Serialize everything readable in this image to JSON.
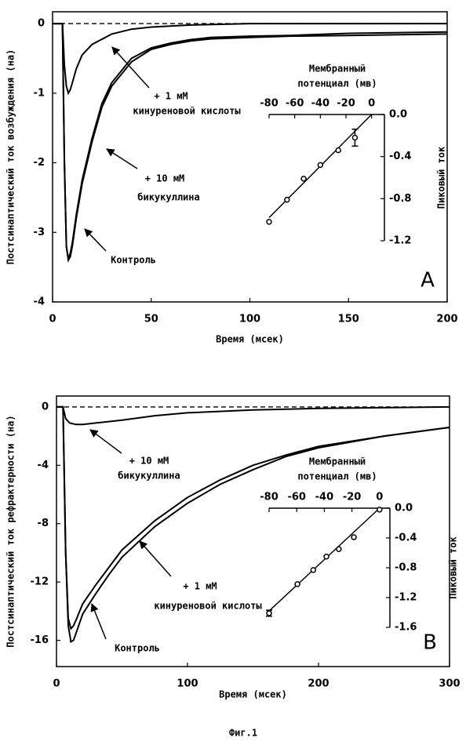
{
  "caption": "Фиг.1",
  "chart_data": [
    {
      "type": "line",
      "panel_label": "A",
      "xlabel": "Время (мсек)",
      "ylabel": "Постсинаптический ток возбуждения (на)",
      "xlim": [
        0,
        200
      ],
      "xticks": [
        0,
        50,
        100,
        150,
        200
      ],
      "ylim": [
        -4,
        0.17
      ],
      "yticks": [
        0,
        -1,
        -2,
        -3,
        -4
      ],
      "baseline": 0,
      "series": [
        {
          "color": "#000000",
          "x": [
            0,
            5,
            6,
            7,
            8,
            9,
            10,
            12,
            15,
            20,
            25,
            30,
            40,
            50,
            60,
            70,
            80,
            100,
            120,
            150,
            200
          ],
          "values": [
            0,
            0,
            -2,
            -3.2,
            -3.4,
            -3.35,
            -3.2,
            -2.8,
            -2.3,
            -1.7,
            -1.2,
            -0.9,
            -0.55,
            -0.37,
            -0.3,
            -0.25,
            -0.22,
            -0.2,
            -0.18,
            -0.17,
            -0.15
          ]
        },
        {
          "color": "#000000",
          "x": [
            0,
            5,
            6,
            7,
            8,
            9,
            10,
            12,
            15,
            20,
            25,
            30,
            40,
            50,
            60,
            70,
            80,
            100,
            120,
            150,
            200
          ],
          "values": [
            0,
            0,
            -2,
            -3.2,
            -3.38,
            -3.3,
            -3.15,
            -2.75,
            -2.25,
            -1.65,
            -1.15,
            -0.85,
            -0.5,
            -0.35,
            -0.28,
            -0.23,
            -0.2,
            -0.18,
            -0.17,
            -0.14,
            -0.12
          ]
        },
        {
          "color": "#000000",
          "x": [
            0,
            5,
            6,
            7,
            8,
            9,
            10,
            12,
            15,
            20,
            30,
            40,
            50,
            70,
            100,
            150,
            200
          ],
          "values": [
            0,
            0,
            -0.6,
            -0.9,
            -1.0,
            -0.95,
            -0.85,
            -0.65,
            -0.45,
            -0.3,
            -0.15,
            -0.08,
            -0.05,
            -0.02,
            0,
            0,
            0
          ]
        }
      ],
      "annotations": [
        {
          "lines": [
            "+ 1 мМ",
            "кинуреновой кислоты"
          ]
        },
        {
          "lines": [
            "+ 10 мМ",
            "бикукуллина"
          ]
        },
        {
          "lines": [
            "Контроль"
          ]
        }
      ]
    },
    {
      "type": "scatter",
      "xlabel_lines": [
        "Мембранный",
        "потенциал (мв)"
      ],
      "ylabel": "Пиковый ток",
      "x_axis_position": "top",
      "y_axis_position": "right",
      "xlim": [
        -80,
        10
      ],
      "xticks": [
        -80,
        -60,
        -40,
        -20,
        0
      ],
      "ylim": [
        -1.2,
        0
      ],
      "yticks": [
        {
          "value": 0,
          "label": "0.0"
        },
        -0.4,
        -0.8,
        -1.2
      ],
      "x": [
        -80,
        -66,
        -53,
        -40,
        -26,
        -13
      ],
      "values": [
        -1.02,
        -0.81,
        -0.61,
        -0.48,
        -0.34,
        -0.22
      ],
      "errors": [
        null,
        null,
        null,
        null,
        null,
        0.08
      ],
      "fit": {
        "x": [
          -80,
          0
        ],
        "values": [
          -0.98,
          0
        ]
      }
    },
    {
      "type": "line",
      "panel_label": "B",
      "xlabel": "Время (мсек)",
      "ylabel": "Постсинаптический ток рефрактерности (на)",
      "xlim": [
        0,
        300
      ],
      "xticks": [
        0,
        100,
        200,
        300
      ],
      "ylim": [
        -17.8,
        0.75
      ],
      "yticks": [
        0,
        -4,
        -8,
        -12,
        -16
      ],
      "baseline": 0,
      "series": [
        {
          "color": "#000000",
          "x": [
            0,
            5,
            7,
            9,
            11,
            13,
            15,
            20,
            30,
            40,
            50,
            75,
            100,
            125,
            150,
            175,
            200,
            250,
            300
          ],
          "values": [
            0,
            0,
            -10,
            -15,
            -16.1,
            -16,
            -15.5,
            -14.2,
            -12.8,
            -11.5,
            -10.3,
            -8.2,
            -6.6,
            -5.3,
            -4.3,
            -3.4,
            -2.8,
            -2,
            -1.4
          ]
        },
        {
          "color": "#000000",
          "x": [
            0,
            5,
            7,
            9,
            11,
            13,
            15,
            20,
            30,
            40,
            50,
            75,
            100,
            125,
            150,
            175,
            200,
            250,
            300
          ],
          "values": [
            0,
            0,
            -10,
            -14.5,
            -15.2,
            -15,
            -14.6,
            -13.5,
            -12.2,
            -11,
            -9.8,
            -7.8,
            -6.2,
            -5,
            -4,
            -3.3,
            -2.7,
            -2,
            -1.4
          ]
        },
        {
          "color": "#000000",
          "x": [
            0,
            5,
            7,
            10,
            15,
            20,
            30,
            50,
            75,
            100,
            150,
            200,
            300
          ],
          "values": [
            0,
            0,
            -0.8,
            -1.1,
            -1.2,
            -1.2,
            -1.1,
            -0.9,
            -0.6,
            -0.4,
            -0.2,
            -0.1,
            0
          ]
        }
      ],
      "annotations": [
        {
          "lines": [
            "+ 10 мМ",
            "бикукуллина"
          ]
        },
        {
          "lines": [
            "+ 1 мМ",
            "кинуреновой кислоты"
          ]
        },
        {
          "lines": [
            "Контроль"
          ]
        }
      ]
    },
    {
      "type": "scatter",
      "xlabel_lines": [
        "Мембранный",
        "потенциал (мв)"
      ],
      "ylabel": "Пиковый ток",
      "x_axis_position": "top",
      "y_axis_position": "right",
      "xlim": [
        -80,
        7.5
      ],
      "xticks": [
        -80,
        -60,
        -40,
        -20,
        0
      ],
      "ylim": [
        -1.6,
        0
      ],
      "yticks": [
        {
          "value": 0,
          "label": "0.0"
        },
        -0.4,
        -0.8,
        -1.2,
        -1.6
      ],
      "x": [
        -80,
        -59.5,
        -48,
        -38.5,
        -29.5,
        -18.6,
        0
      ],
      "values": [
        -1.41,
        -1.02,
        -0.83,
        -0.65,
        -0.55,
        -0.39,
        -0.02
      ],
      "errors": [
        0.04,
        null,
        null,
        null,
        null,
        null,
        null
      ],
      "fit": {
        "x": [
          -80,
          0
        ],
        "values": [
          -1.38,
          0
        ]
      }
    }
  ]
}
